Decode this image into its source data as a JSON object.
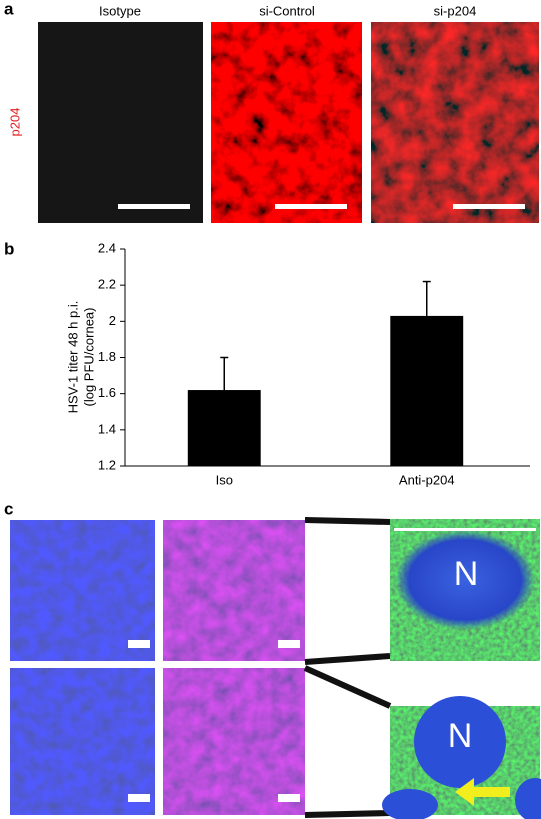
{
  "panels": {
    "a": {
      "label": "a",
      "columns": [
        "Isotype",
        "si-Control",
        "si-p204"
      ],
      "row_label": "p204"
    },
    "c": {
      "label": "c",
      "nucleus_labels": [
        "N",
        "N"
      ]
    }
  },
  "chart_data": {
    "type": "bar",
    "panel_label": "b",
    "y_label": [
      "HSV-1 titer 48 h p.i.",
      "(log PFU/cornea)"
    ],
    "categories": [
      "Iso",
      "Anti-p204"
    ],
    "values": [
      1.62,
      2.03
    ],
    "errors": [
      0.18,
      0.19
    ],
    "color": "#000000",
    "ylim": [
      1.2,
      2.4
    ],
    "yticks": [
      1.2,
      1.4,
      1.6,
      1.8,
      2,
      2.2,
      2.4
    ],
    "grid": false
  }
}
